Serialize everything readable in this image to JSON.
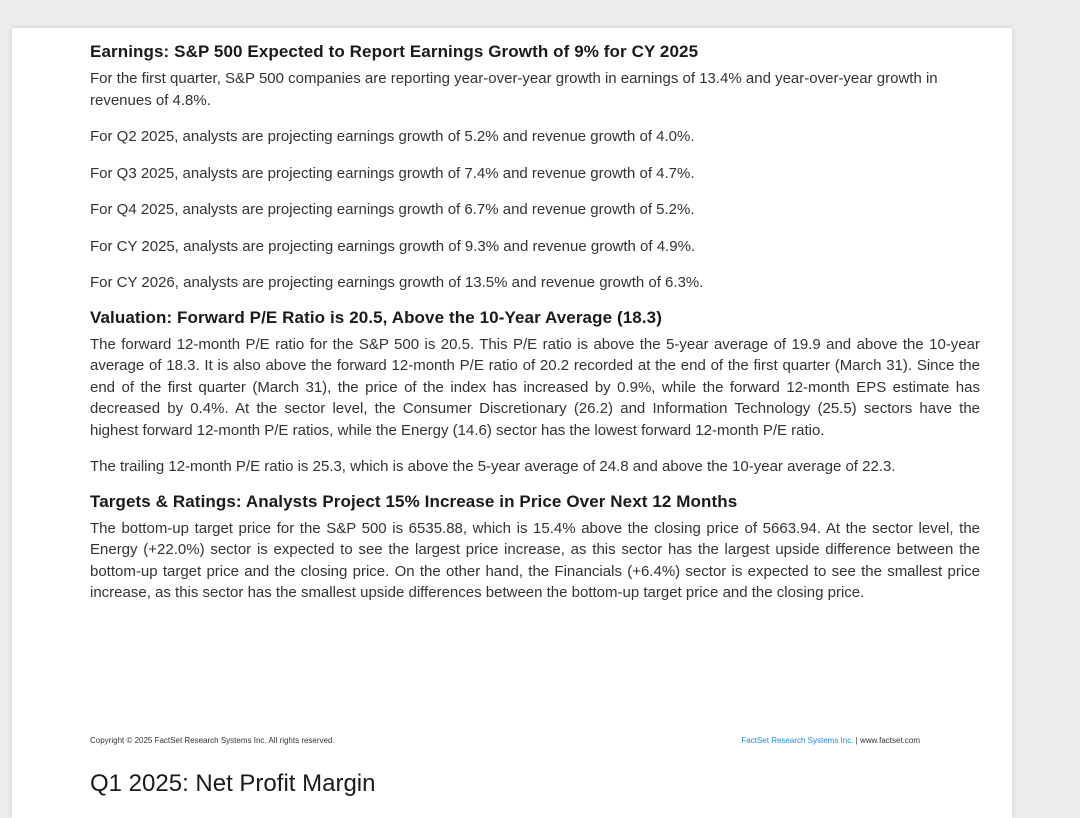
{
  "earnings": {
    "heading": "Earnings: S&P 500 Expected to Report Earnings Growth of 9% for CY 2025",
    "paragraphs": [
      "For the first quarter, S&P 500 companies are reporting year-over-year growth in earnings of 13.4% and year-over-year growth in revenues of 4.8%.",
      "For Q2 2025, analysts are projecting earnings growth of 5.2% and revenue growth of 4.0%.",
      "For Q3 2025, analysts are projecting earnings growth of 7.4% and revenue growth of 4.7%.",
      "For Q4 2025, analysts are projecting earnings growth of 6.7% and revenue growth of 5.2%.",
      "For CY 2025, analysts are projecting earnings growth of 9.3% and revenue growth of 4.9%.",
      "For CY 2026, analysts are projecting earnings growth of 13.5% and revenue growth of 6.3%."
    ]
  },
  "valuation": {
    "heading": "Valuation: Forward P/E Ratio is 20.5, Above the 10-Year Average (18.3)",
    "paragraphs": [
      "The forward 12-month P/E ratio for the S&P 500 is 20.5. This P/E ratio is above the 5-year average of 19.9 and above the 10-year average of 18.3. It is also above the forward 12-month P/E ratio of 20.2 recorded at the end of the first quarter (March 31). Since the end of the first quarter (March 31), the price of the index has increased by 0.9%, while the forward 12-month EPS estimate has decreased by 0.4%. At the sector level, the Consumer Discretionary (26.2) and Information Technology (25.5) sectors have the highest forward 12-month P/E ratios, while the Energy (14.6) sector has the lowest forward 12-month P/E ratio.",
      "The trailing 12-month P/E ratio is 25.3, which is above the 5-year average of 24.8 and above the 10-year average of 22.3."
    ]
  },
  "targets": {
    "heading": "Targets & Ratings: Analysts Project 15% Increase in Price Over Next 12 Months",
    "paragraphs": [
      "The bottom-up target price for the S&P 500 is 6535.88, which is 15.4% above the closing price of 5663.94. At the sector level, the Energy (+22.0%) sector is expected to see the largest price increase, as this sector has the largest upside difference between the bottom-up target price and the closing price. On the other hand, the Financials (+6.4%) sector is expected to see the smallest price increase, as this sector has the smallest upside differences between the bottom-up target price and the closing price."
    ]
  },
  "footer": {
    "copyright": "Copyright © 2025 FactSet Research Systems Inc. All rights reserved.",
    "company_link": "FactSet Research Systems Inc.",
    "separator": " | ",
    "website": "www.factset.com",
    "link_color": "#1e88e5"
  },
  "next_page": {
    "title": "Q1 2025: Net Profit Margin"
  }
}
